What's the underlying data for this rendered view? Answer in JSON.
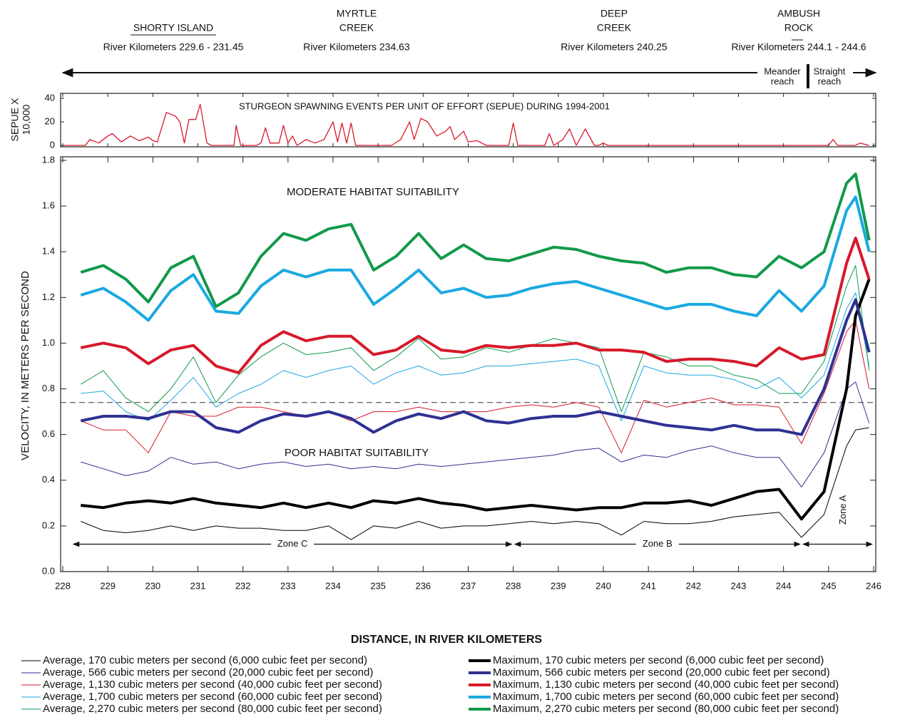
{
  "chart_data": [
    {
      "type": "line",
      "title": "STURGEON SPAWNING  EVENTS PER UNIT OF EFFORT (SEPUE) DURING 1994-2001",
      "ylabel_lines": [
        "SEPUE X",
        "10,000"
      ],
      "color": "#d7192a",
      "xlim": [
        228,
        246
      ],
      "ylim": [
        0,
        40
      ],
      "yticks": [
        0,
        20,
        40
      ],
      "xticks": [
        228,
        229,
        230,
        231,
        232,
        233,
        234,
        235,
        236,
        237,
        238,
        239,
        240,
        241,
        242,
        243,
        244,
        245,
        246
      ],
      "x": [
        228.0,
        228.5,
        228.6,
        228.8,
        229.0,
        229.1,
        229.3,
        229.5,
        229.7,
        229.9,
        230.0,
        230.1,
        230.3,
        230.5,
        230.6,
        230.7,
        230.8,
        230.95,
        231.05,
        231.2,
        231.3,
        231.8,
        231.85,
        231.95,
        232.3,
        232.4,
        232.5,
        232.6,
        232.8,
        232.9,
        233.0,
        233.1,
        233.2,
        233.4,
        233.6,
        233.8,
        234.0,
        234.1,
        234.2,
        234.3,
        234.4,
        234.5,
        235.3,
        235.5,
        235.7,
        235.8,
        235.95,
        236.1,
        236.3,
        236.5,
        236.6,
        236.7,
        236.9,
        237.0,
        237.2,
        237.4,
        237.9,
        238.0,
        238.1,
        238.7,
        238.8,
        238.9,
        239.1,
        239.25,
        239.4,
        239.6,
        239.8,
        239.9,
        240.0,
        240.1,
        245.0,
        245.1,
        245.2,
        245.6,
        245.7,
        245.9
      ],
      "values": [
        0,
        0,
        5,
        2,
        8,
        10,
        3,
        8,
        4,
        7,
        4,
        3,
        28,
        25,
        20,
        2,
        22,
        22,
        35,
        2,
        0,
        0,
        17,
        0,
        0,
        2,
        15,
        2,
        2,
        17,
        2,
        8,
        0,
        5,
        2,
        5,
        20,
        3,
        19,
        2,
        19,
        0,
        0,
        5,
        20,
        5,
        23,
        20,
        8,
        12,
        16,
        5,
        12,
        3,
        4,
        0,
        0,
        19,
        0,
        0,
        10,
        0,
        5,
        14,
        0,
        14,
        0,
        0,
        2,
        0,
        0,
        5,
        0,
        0,
        2,
        0
      ],
      "locations": [
        {
          "name_lines": [
            "SHORTY ISLAND"
          ],
          "range": "River Kilometers 229.6 - 231.45"
        },
        {
          "name_lines": [
            "MYRTLE",
            "CREEK"
          ],
          "range": "River Kilometers 234.63"
        },
        {
          "name_lines": [
            "DEEP",
            "CREEK"
          ],
          "range": "River Kilometers 240.25"
        },
        {
          "name_lines": [
            "AMBUSH",
            "ROCK"
          ],
          "range": "River Kilometers 244.1 - 244.6"
        }
      ],
      "reaches": [
        {
          "lines": [
            "Meander",
            "reach"
          ]
        },
        {
          "lines": [
            "Straight",
            "reach"
          ]
        }
      ]
    },
    {
      "type": "line",
      "xlabel": "DISTANCE, IN RIVER KILOMETERS",
      "ylabel": "VELOCITY, IN METERS PER SECOND",
      "annotations": [
        "MODERATE HABITAT SUITABILITY",
        "POOR HABITAT SUITABILITY"
      ],
      "threshold": 0.74,
      "zones": [
        {
          "name": "Zone C",
          "range": [
            228.2,
            238.0
          ]
        },
        {
          "name": "Zone B",
          "range": [
            238.0,
            244.4
          ]
        },
        {
          "name": "Zone A",
          "range": [
            244.4,
            246
          ]
        }
      ],
      "xlim": [
        228,
        246
      ],
      "ylim": [
        0,
        1.8
      ],
      "xticks": [
        228,
        229,
        230,
        231,
        232,
        233,
        234,
        235,
        236,
        237,
        238,
        239,
        240,
        241,
        242,
        243,
        244,
        245,
        246
      ],
      "yticks": [
        {
          "value": 0,
          "label": "0.0"
        },
        0.2,
        0.4,
        0.6,
        0.8,
        {
          "value": 1,
          "label": "1.0"
        },
        1.2,
        1.4,
        1.6,
        1.8
      ],
      "x": [
        228.4,
        228.9,
        229.4,
        229.9,
        230.4,
        230.9,
        231.4,
        231.9,
        232.4,
        232.9,
        233.4,
        233.9,
        234.4,
        234.9,
        235.4,
        235.9,
        236.4,
        236.9,
        237.4,
        237.9,
        238.4,
        238.9,
        239.4,
        239.9,
        240.4,
        240.9,
        241.4,
        241.9,
        242.4,
        242.9,
        243.4,
        243.9,
        244.4,
        244.9,
        245.4,
        245.6,
        245.9
      ],
      "series": [
        {
          "name": "Average, 170 cubic meters per second (6,000 cubic feet per second)",
          "color": "#000000",
          "line_width": 1,
          "values": [
            0.22,
            0.18,
            0.17,
            0.18,
            0.2,
            0.18,
            0.2,
            0.19,
            0.19,
            0.18,
            0.18,
            0.2,
            0.14,
            0.2,
            0.19,
            0.22,
            0.19,
            0.2,
            0.2,
            0.21,
            0.22,
            0.21,
            0.22,
            0.21,
            0.16,
            0.22,
            0.21,
            0.21,
            0.22,
            0.24,
            0.25,
            0.26,
            0.15,
            0.25,
            0.55,
            0.62,
            0.63
          ]
        },
        {
          "name": "Average, 566 cubic meters per second (20,000 cubic feet per second)",
          "color": "#2e3192",
          "line_width": 1,
          "values": [
            0.48,
            0.45,
            0.42,
            0.44,
            0.5,
            0.47,
            0.48,
            0.45,
            0.47,
            0.48,
            0.46,
            0.47,
            0.45,
            0.46,
            0.45,
            0.47,
            0.46,
            0.47,
            0.48,
            0.49,
            0.5,
            0.51,
            0.53,
            0.54,
            0.48,
            0.51,
            0.5,
            0.53,
            0.55,
            0.52,
            0.5,
            0.5,
            0.37,
            0.52,
            0.8,
            0.83,
            0.65
          ]
        },
        {
          "name": "Average, 1,130 cubic meters per second (40,000 cubic feet per second)",
          "color": "#d7192a",
          "line_width": 1,
          "values": [
            0.66,
            0.62,
            0.62,
            0.52,
            0.7,
            0.68,
            0.68,
            0.72,
            0.72,
            0.7,
            0.68,
            0.7,
            0.66,
            0.7,
            0.7,
            0.72,
            0.7,
            0.7,
            0.7,
            0.72,
            0.73,
            0.72,
            0.74,
            0.72,
            0.52,
            0.75,
            0.72,
            0.74,
            0.76,
            0.73,
            0.73,
            0.72,
            0.56,
            0.78,
            1.05,
            1.1,
            0.8
          ]
        },
        {
          "name": "Average, 1,700 cubic meters per second (60,000 cubic feet per second)",
          "color": "#1ba9e1",
          "line_width": 1,
          "values": [
            0.78,
            0.79,
            0.7,
            0.66,
            0.75,
            0.85,
            0.72,
            0.78,
            0.82,
            0.88,
            0.85,
            0.88,
            0.9,
            0.82,
            0.87,
            0.9,
            0.86,
            0.87,
            0.9,
            0.9,
            0.91,
            0.92,
            0.93,
            0.9,
            0.66,
            0.9,
            0.87,
            0.86,
            0.86,
            0.84,
            0.8,
            0.85,
            0.76,
            0.86,
            1.15,
            1.22,
            0.9
          ]
        },
        {
          "name": "Average, 2,270 cubic meters per second (80,000 cubic feet per second)",
          "color": "#12994a",
          "line_width": 1,
          "values": [
            0.82,
            0.88,
            0.76,
            0.7,
            0.8,
            0.94,
            0.74,
            0.86,
            0.94,
            1.0,
            0.95,
            0.96,
            0.98,
            0.88,
            0.94,
            1.02,
            0.93,
            0.94,
            0.98,
            0.96,
            0.99,
            1.02,
            1.0,
            0.98,
            0.7,
            0.96,
            0.94,
            0.9,
            0.9,
            0.86,
            0.84,
            0.78,
            0.78,
            0.92,
            1.25,
            1.34,
            0.88
          ]
        },
        {
          "name": "Maximum, 170 cubic meters per second (6,000 cubic feet per second)",
          "color": "#000000",
          "line_width": 4,
          "values": [
            0.29,
            0.28,
            0.3,
            0.31,
            0.3,
            0.32,
            0.3,
            0.29,
            0.28,
            0.3,
            0.28,
            0.3,
            0.28,
            0.31,
            0.3,
            0.32,
            0.3,
            0.29,
            0.27,
            0.28,
            0.29,
            0.28,
            0.27,
            0.28,
            0.28,
            0.3,
            0.3,
            0.31,
            0.29,
            0.32,
            0.35,
            0.36,
            0.23,
            0.35,
            0.8,
            1.12,
            1.28
          ]
        },
        {
          "name": "Maximum, 566 cubic meters per second (20,000 cubic feet per second)",
          "color": "#2e3192",
          "line_width": 4,
          "values": [
            0.66,
            0.68,
            0.68,
            0.67,
            0.7,
            0.7,
            0.63,
            0.61,
            0.66,
            0.69,
            0.68,
            0.7,
            0.67,
            0.61,
            0.66,
            0.69,
            0.67,
            0.7,
            0.66,
            0.65,
            0.67,
            0.68,
            0.68,
            0.7,
            0.68,
            0.66,
            0.64,
            0.63,
            0.62,
            0.64,
            0.62,
            0.62,
            0.6,
            0.8,
            1.1,
            1.19,
            0.96
          ]
        },
        {
          "name": "Maximum, 1,130 cubic meters per second (40,000 cubic feet per second)",
          "color": "#d7192a",
          "line_width": 4,
          "values": [
            0.98,
            1.0,
            0.98,
            0.91,
            0.97,
            0.99,
            0.9,
            0.87,
            0.99,
            1.05,
            1.01,
            1.03,
            1.03,
            0.95,
            0.97,
            1.03,
            0.97,
            0.96,
            0.99,
            0.98,
            0.99,
            0.99,
            1.0,
            0.97,
            0.97,
            0.96,
            0.92,
            0.93,
            0.93,
            0.92,
            0.9,
            0.98,
            0.93,
            0.95,
            1.35,
            1.46,
            1.28
          ]
        },
        {
          "name": "Maximum, 1,700 cubic meters per second (60,000 cubic feet per second)",
          "color": "#1ba9e1",
          "line_width": 4,
          "values": [
            1.21,
            1.24,
            1.18,
            1.1,
            1.23,
            1.3,
            1.14,
            1.13,
            1.25,
            1.32,
            1.29,
            1.32,
            1.32,
            1.17,
            1.24,
            1.32,
            1.22,
            1.24,
            1.2,
            1.21,
            1.24,
            1.26,
            1.27,
            1.24,
            1.21,
            1.18,
            1.15,
            1.17,
            1.17,
            1.14,
            1.12,
            1.23,
            1.14,
            1.25,
            1.58,
            1.64,
            1.4
          ]
        },
        {
          "name": "Maximum, 2,270 cubic meters per second (80,000 cubic feet per second)",
          "color": "#12994a",
          "line_width": 4,
          "values": [
            1.31,
            1.34,
            1.28,
            1.18,
            1.33,
            1.38,
            1.16,
            1.22,
            1.38,
            1.48,
            1.45,
            1.5,
            1.52,
            1.32,
            1.38,
            1.48,
            1.37,
            1.43,
            1.37,
            1.36,
            1.39,
            1.42,
            1.41,
            1.38,
            1.36,
            1.35,
            1.31,
            1.33,
            1.33,
            1.3,
            1.29,
            1.38,
            1.33,
            1.4,
            1.7,
            1.74,
            1.45
          ]
        }
      ]
    }
  ]
}
